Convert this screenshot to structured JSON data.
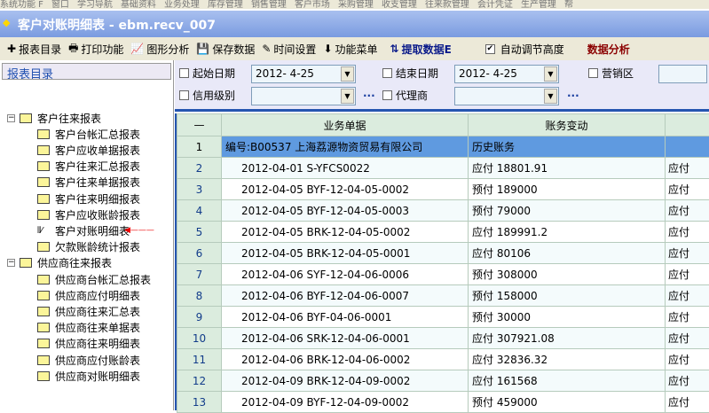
{
  "menu": [
    "系统功能 F",
    "窗口",
    "学习导航",
    "基础资料",
    "业务处理",
    "库存管理",
    "销售管理",
    "客户市场",
    "采购管理",
    "收支管理",
    "往来款管理",
    "会计凭证",
    "生产管理",
    "帮"
  ],
  "window": {
    "title": "客户对账明细表 - ebm.recv_007"
  },
  "toolbar": [
    {
      "icon": "plus-icon",
      "glyph": "✚",
      "label": "报表目录"
    },
    {
      "icon": "printer-icon",
      "glyph": "🖶",
      "label": "打印功能"
    },
    {
      "icon": "chart-icon",
      "glyph": "📈",
      "label": "图形分析"
    },
    {
      "icon": "save-icon",
      "glyph": "💾",
      "label": "保存数据"
    },
    {
      "icon": "wand-icon",
      "glyph": "✎",
      "label": "时间设置"
    },
    {
      "icon": "down-arrow-icon",
      "glyph": "⬇",
      "label": "功能菜单"
    },
    {
      "icon": "refresh-icon",
      "glyph": "⇅",
      "label": "提取数据E"
    }
  ],
  "auto_height": {
    "label": "自动调节高度",
    "checked": true
  },
  "data_analysis": "数据分析",
  "sidebar": {
    "title": "报表目录",
    "groups": [
      {
        "label": "客户往来报表",
        "items": [
          "客户台帐汇总报表",
          "客户应收单据报表",
          "客户往来汇总报表",
          "客户往来单据报表",
          "客户往来明细报表",
          "客户应收账龄报表",
          "客户对账明细表",
          "欠款账龄统计报表"
        ]
      },
      {
        "label": "供应商往来报表",
        "items": [
          "供应商台帐汇总报表",
          "供应商应付明细表",
          "供应商往来汇总表",
          "供应商往来单据表",
          "供应商往来明细表",
          "供应商应付账龄表",
          "供应商对账明细表"
        ]
      }
    ],
    "active": "客户对账明细表"
  },
  "filters": {
    "start_label": "起始日期",
    "start_value": "2012-  4-25",
    "end_label": "结束日期",
    "end_value": "2012-  4-25",
    "region_label": "营销区",
    "credit_label": "信用级别",
    "agent_label": "代理商",
    "ellipsis": "..."
  },
  "grid": {
    "columns": [
      "—",
      "业务单据",
      "账务变动",
      ""
    ],
    "rows": [
      [
        "1",
        "编号:B00537 上海荔源物资贸易有限公司",
        "历史账务",
        ""
      ],
      [
        "2",
        "2012-04-01 S-YFCS0022",
        "应付 18801.91",
        "应付"
      ],
      [
        "3",
        "2012-04-05 BYF-12-04-05-0002",
        "预付 189000",
        "应付"
      ],
      [
        "4",
        "2012-04-05 BYF-12-04-05-0003",
        "预付 79000",
        "应付"
      ],
      [
        "5",
        "2012-04-05 BRK-12-04-05-0002",
        "应付 189991.2",
        "应付"
      ],
      [
        "6",
        "2012-04-05 BRK-12-04-05-0001",
        "应付 80106",
        "应付"
      ],
      [
        "7",
        "2012-04-06 SYF-12-04-06-0006",
        "预付 308000",
        "应付"
      ],
      [
        "8",
        "2012-04-06 BYF-12-04-06-0007",
        "预付 158000",
        "应付"
      ],
      [
        "9",
        "2012-04-06 BYF-04-06-0001",
        "预付 30000",
        "应付"
      ],
      [
        "10",
        "2012-04-06 SRK-12-04-06-0001",
        "应付 307921.08",
        "应付"
      ],
      [
        "11",
        "2012-04-06 BRK-12-04-06-0002",
        "应付 32836.32",
        "应付"
      ],
      [
        "12",
        "2012-04-09 BRK-12-04-09-0002",
        "应付 161568",
        "应付"
      ],
      [
        "13",
        "2012-04-09 BYF-12-04-09-0002",
        "预付 459000",
        "应付"
      ]
    ]
  }
}
